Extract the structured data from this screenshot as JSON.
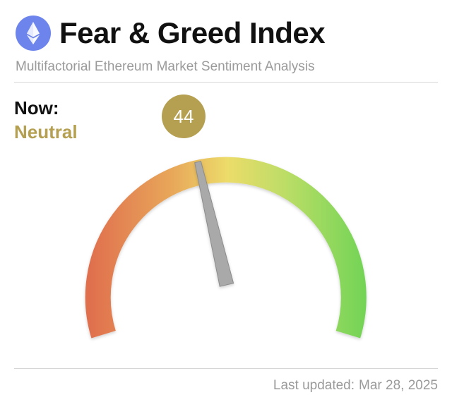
{
  "header": {
    "title": "Fear & Greed Index",
    "subtitle": "Multifactorial Ethereum Market Sentiment Analysis",
    "logo_icon": "ethereum-logo-icon"
  },
  "status": {
    "now_label": "Now:",
    "sentiment": "Neutral",
    "score": "44",
    "score_value": 44,
    "scale_min": 0,
    "scale_max": 100
  },
  "footer": {
    "updated_label": "Last updated:",
    "updated_date": "Mar 28, 2025"
  },
  "colors": {
    "accent": "#b5a052",
    "logo_bg": "#6d84ec",
    "gauge_fear": "#e0704e",
    "gauge_mid_low": "#e8a85a",
    "gauge_neutral": "#ecdc6a",
    "gauge_mid_high": "#b9dd66",
    "gauge_greed": "#72d456",
    "needle": "#a9a9a9"
  }
}
